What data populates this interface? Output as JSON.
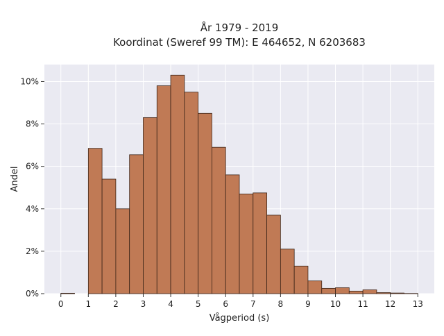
{
  "chart_data": {
    "type": "bar",
    "title_line1": "År 1979 - 2019",
    "title_line2": "Koordinat (Sweref 99 TM): E 464652, N 6203683",
    "xlabel": "Vågperiod (s)",
    "ylabel": "Andel",
    "bin_width": 0.5,
    "bin_starts": [
      0,
      0.5,
      1,
      1.5,
      2,
      2.5,
      3,
      3.5,
      4,
      4.5,
      5,
      5.5,
      6,
      6.5,
      7,
      7.5,
      8,
      8.5,
      9,
      9.5,
      10,
      10.5,
      11,
      11.5,
      12,
      12.5
    ],
    "values": [
      0.02,
      0.0,
      6.85,
      5.4,
      4.0,
      6.55,
      8.3,
      9.8,
      10.3,
      9.5,
      8.5,
      6.9,
      5.6,
      4.7,
      4.75,
      3.7,
      2.1,
      1.3,
      0.6,
      0.25,
      0.28,
      0.12,
      0.18,
      0.05,
      0.03,
      0.01
    ],
    "xlim": [
      -0.6,
      13.6
    ],
    "ylim": [
      0,
      10.8
    ],
    "x_ticks": [
      0,
      1,
      2,
      3,
      4,
      5,
      6,
      7,
      8,
      9,
      10,
      11,
      12,
      13
    ],
    "y_ticks": [
      0,
      2,
      4,
      6,
      8,
      10
    ],
    "y_tick_labels": [
      "0%",
      "2%",
      "4%",
      "6%",
      "8%",
      "10%"
    ],
    "grid": true,
    "bar_color": "#c07a55",
    "bar_edge_color": "#3b2418",
    "plot_background": "#eaeaf2"
  }
}
